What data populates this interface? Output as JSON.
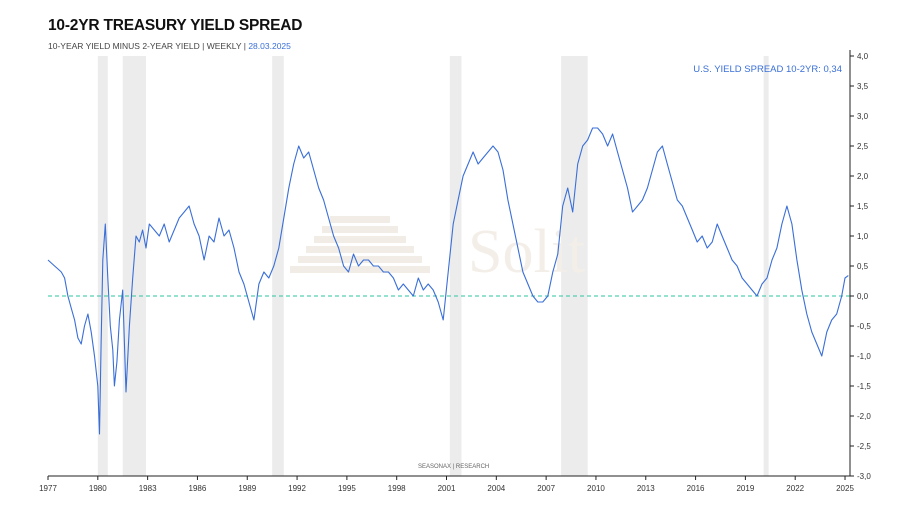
{
  "header": {
    "title": "10-2YR TREASURY YIELD SPREAD",
    "subtitle_main": "10-YEAR YIELD MINUS 2-YEAR YIELD | WEEKLY |",
    "subtitle_date": "28.03.2025"
  },
  "legend_label": "U.S. YIELD SPREAD 10-2YR: 0,34",
  "watermark": {
    "logo_text": "Solit",
    "source_text": "SEASONAX | RESEARCH"
  },
  "colors": {
    "line": "#3a6fd8",
    "zero_line": "#2ec4a0",
    "recession_shade": "#ececec",
    "axis": "#222222"
  },
  "chart_data": {
    "type": "line",
    "title": "10-2YR TREASURY YIELD SPREAD",
    "xlabel": "",
    "ylabel": "",
    "xlim": [
      1977.0,
      2025.3
    ],
    "ylim": [
      -3.0,
      4.0
    ],
    "x_ticks": [
      "1977",
      "1980",
      "1983",
      "1986",
      "1989",
      "1992",
      "1995",
      "1998",
      "2001",
      "2004",
      "2007",
      "2010",
      "2013",
      "2016",
      "2019",
      "2022",
      "2025"
    ],
    "y_ticks": [
      "4,0",
      "3,5",
      "3,0",
      "2,5",
      "2,0",
      "1,5",
      "1,0",
      "0,5",
      "0,0",
      "-0,5",
      "-1,0",
      "-1,5",
      "-2,0",
      "-2,5",
      "-3,0"
    ],
    "y_axis_side": "right",
    "grid": false,
    "reference_line": 0.0,
    "recessions": [
      [
        1980.0,
        1980.6
      ],
      [
        1981.5,
        1982.9
      ],
      [
        1990.5,
        1991.2
      ],
      [
        2001.2,
        2001.9
      ],
      [
        2007.9,
        2009.5
      ],
      [
        2020.1,
        2020.4
      ]
    ],
    "series": [
      {
        "name": "U.S. YIELD SPREAD 10-2YR",
        "x": [
          1977.0,
          1977.2,
          1977.4,
          1977.6,
          1977.8,
          1978.0,
          1978.2,
          1978.4,
          1978.6,
          1978.8,
          1979.0,
          1979.2,
          1979.4,
          1979.6,
          1979.8,
          1980.0,
          1980.1,
          1980.2,
          1980.3,
          1980.45,
          1980.6,
          1980.75,
          1980.9,
          1981.0,
          1981.15,
          1981.3,
          1981.5,
          1981.7,
          1981.9,
          1982.1,
          1982.3,
          1982.5,
          1982.7,
          1982.9,
          1983.1,
          1983.4,
          1983.7,
          1984.0,
          1984.3,
          1984.6,
          1984.9,
          1985.2,
          1985.5,
          1985.8,
          1986.1,
          1986.4,
          1986.7,
          1987.0,
          1987.3,
          1987.6,
          1987.9,
          1988.2,
          1988.5,
          1988.8,
          1989.1,
          1989.4,
          1989.7,
          1990.0,
          1990.3,
          1990.6,
          1990.9,
          1991.2,
          1991.5,
          1991.8,
          1992.1,
          1992.4,
          1992.7,
          1993.0,
          1993.3,
          1993.6,
          1993.9,
          1994.2,
          1994.5,
          1994.8,
          1995.1,
          1995.4,
          1995.7,
          1996.0,
          1996.3,
          1996.6,
          1996.9,
          1997.2,
          1997.5,
          1997.8,
          1998.1,
          1998.4,
          1998.7,
          1999.0,
          1999.3,
          1999.6,
          1999.9,
          2000.2,
          2000.5,
          2000.8,
          2001.1,
          2001.4,
          2001.7,
          2002.0,
          2002.3,
          2002.6,
          2002.9,
          2003.2,
          2003.5,
          2003.8,
          2004.1,
          2004.4,
          2004.7,
          2005.0,
          2005.3,
          2005.6,
          2005.9,
          2006.2,
          2006.5,
          2006.8,
          2007.1,
          2007.4,
          2007.7,
          2008.0,
          2008.3,
          2008.6,
          2008.9,
          2009.2,
          2009.5,
          2009.8,
          2010.1,
          2010.4,
          2010.7,
          2011.0,
          2011.3,
          2011.6,
          2011.9,
          2012.2,
          2012.5,
          2012.8,
          2013.1,
          2013.4,
          2013.7,
          2014.0,
          2014.3,
          2014.6,
          2014.9,
          2015.2,
          2015.5,
          2015.8,
          2016.1,
          2016.4,
          2016.7,
          2017.0,
          2017.3,
          2017.6,
          2017.9,
          2018.2,
          2018.5,
          2018.8,
          2019.1,
          2019.4,
          2019.7,
          2020.0,
          2020.3,
          2020.6,
          2020.9,
          2021.2,
          2021.5,
          2021.8,
          2022.1,
          2022.4,
          2022.7,
          2023.0,
          2023.3,
          2023.6,
          2023.9,
          2024.2,
          2024.5,
          2024.8,
          2025.0,
          2025.2
        ],
        "y": [
          0.6,
          0.55,
          0.5,
          0.45,
          0.4,
          0.3,
          0.0,
          -0.2,
          -0.4,
          -0.7,
          -0.8,
          -0.5,
          -0.3,
          -0.6,
          -1.0,
          -1.5,
          -2.3,
          -0.8,
          0.6,
          1.2,
          0.3,
          -0.5,
          -0.9,
          -1.5,
          -1.1,
          -0.4,
          0.1,
          -1.6,
          -0.5,
          0.3,
          1.0,
          0.9,
          1.1,
          0.8,
          1.2,
          1.1,
          1.0,
          1.2,
          0.9,
          1.1,
          1.3,
          1.4,
          1.5,
          1.2,
          1.0,
          0.6,
          1.0,
          0.9,
          1.3,
          1.0,
          1.1,
          0.8,
          0.4,
          0.2,
          -0.1,
          -0.4,
          0.2,
          0.4,
          0.3,
          0.5,
          0.8,
          1.3,
          1.8,
          2.2,
          2.5,
          2.3,
          2.4,
          2.1,
          1.8,
          1.6,
          1.3,
          1.0,
          0.8,
          0.5,
          0.4,
          0.7,
          0.5,
          0.6,
          0.6,
          0.5,
          0.5,
          0.4,
          0.4,
          0.3,
          0.1,
          0.2,
          0.1,
          0.0,
          0.3,
          0.1,
          0.2,
          0.1,
          -0.1,
          -0.4,
          0.4,
          1.2,
          1.6,
          2.0,
          2.2,
          2.4,
          2.2,
          2.3,
          2.4,
          2.5,
          2.4,
          2.1,
          1.6,
          1.2,
          0.8,
          0.4,
          0.2,
          0.0,
          -0.1,
          -0.1,
          0.0,
          0.4,
          0.7,
          1.5,
          1.8,
          1.4,
          2.2,
          2.5,
          2.6,
          2.8,
          2.8,
          2.7,
          2.5,
          2.7,
          2.4,
          2.1,
          1.8,
          1.4,
          1.5,
          1.6,
          1.8,
          2.1,
          2.4,
          2.5,
          2.2,
          1.9,
          1.6,
          1.5,
          1.3,
          1.1,
          0.9,
          1.0,
          0.8,
          0.9,
          1.2,
          1.0,
          0.8,
          0.6,
          0.5,
          0.3,
          0.2,
          0.1,
          0.0,
          0.2,
          0.3,
          0.6,
          0.8,
          1.2,
          1.5,
          1.2,
          0.6,
          0.1,
          -0.3,
          -0.6,
          -0.8,
          -1.0,
          -0.6,
          -0.4,
          -0.3,
          0.0,
          0.3,
          0.34
        ]
      }
    ]
  }
}
